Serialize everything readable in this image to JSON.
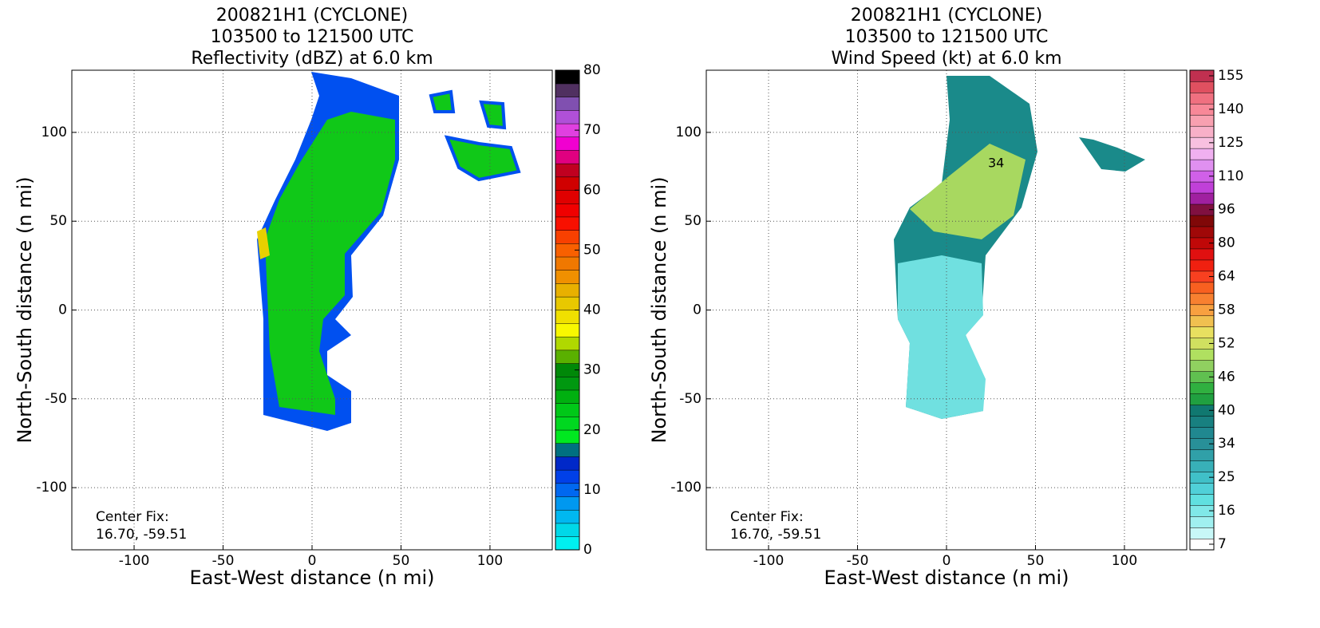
{
  "chart_data": [
    {
      "type": "radar-field",
      "title": [
        "200821H1 (CYCLONE)",
        "103500 to 121500 UTC",
        "Reflectivity (dBZ) at 6.0 km"
      ],
      "x_label": "East-West distance (n mi)",
      "y_label": "North-South distance (n mi)",
      "xlim": [
        -135,
        135
      ],
      "ylim": [
        -135,
        135
      ],
      "xticks": [
        -100,
        -50,
        0,
        50,
        100
      ],
      "yticks": [
        -100,
        -50,
        0,
        50,
        100
      ],
      "grid": true,
      "annotation": [
        "Center Fix:",
        "16.70, -59.51"
      ],
      "colorbar": {
        "lim": [
          0,
          80
        ],
        "ticks": [
          0,
          10,
          20,
          30,
          40,
          50,
          60,
          70,
          80
        ],
        "colors": [
          "#00f0f0",
          "#00d8e8",
          "#00b8f0",
          "#0098f0",
          "#0068f0",
          "#0040e8",
          "#0028c8",
          "#007080",
          "#00e820",
          "#00d820",
          "#00c818",
          "#00b010",
          "#009810",
          "#008808",
          "#5ab000",
          "#b0d800",
          "#f8f800",
          "#f0e000",
          "#e8c800",
          "#e8b000",
          "#f09000",
          "#f07800",
          "#f86000",
          "#f84000",
          "#f81000",
          "#f00000",
          "#e00000",
          "#d00000",
          "#c00020",
          "#e00080",
          "#f000d0",
          "#e040e0",
          "#b050d8",
          "#8050b0",
          "#503060",
          "#000000"
        ]
      }
    },
    {
      "type": "radar-field",
      "title": [
        "200821H1 (CYCLONE)",
        "103500 to 121500 UTC",
        "Wind Speed (kt) at 6.0 km"
      ],
      "x_label": "East-West distance (n mi)",
      "y_label": "North-South distance (n mi)",
      "xlim": [
        -135,
        135
      ],
      "ylim": [
        -135,
        135
      ],
      "xticks": [
        -100,
        -50,
        0,
        50,
        100
      ],
      "yticks": [
        -100,
        -50,
        0,
        50,
        100
      ],
      "grid": true,
      "annotation": [
        "Center Fix:",
        "16.70, -59.51"
      ],
      "contour_label": "34",
      "colorbar": {
        "ticks": [
          7,
          16,
          25,
          34,
          40,
          46,
          52,
          58,
          64,
          80,
          96,
          110,
          125,
          140,
          155
        ],
        "colors": [
          "#ffffff",
          "#c8f8f8",
          "#a0f0f0",
          "#80e8e8",
          "#60e0e0",
          "#50d0d8",
          "#40c0c8",
          "#38b0b8",
          "#30a0a8",
          "#289098",
          "#208890",
          "#188080",
          "#107870",
          "#20a040",
          "#30b040",
          "#60c050",
          "#90d060",
          "#b0e060",
          "#d0e060",
          "#e8e060",
          "#f0c050",
          "#f8a040",
          "#f88030",
          "#f86020",
          "#f84020",
          "#f02010",
          "#e01010",
          "#c00808",
          "#a00808",
          "#800808",
          "#801040",
          "#a020a0",
          "#c040d8",
          "#d060e8",
          "#e090f0",
          "#f0b0f0",
          "#f8c0e0",
          "#f8b0c8",
          "#f8a0b0",
          "#f88898",
          "#f07080",
          "#e05060",
          "#c03050"
        ]
      }
    }
  ]
}
